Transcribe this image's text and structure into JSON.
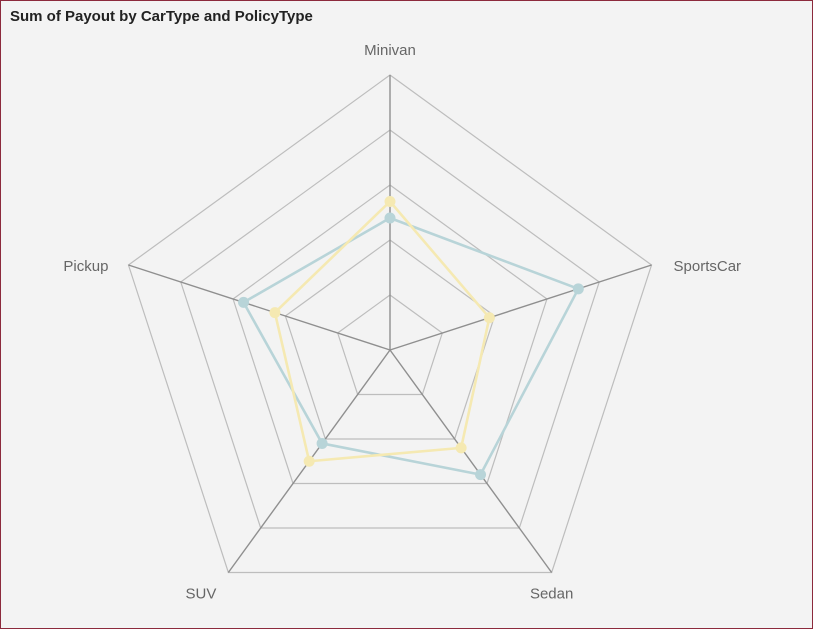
{
  "title": "Sum of Payout by CarType and PolicyType",
  "chart_data": {
    "type": "radar",
    "title": "Sum of Payout by CarType and PolicyType",
    "categories": [
      "Minivan",
      "SportsCar",
      "Sedan",
      "SUV",
      "Pickup"
    ],
    "rings": 5,
    "series": [
      {
        "values": [
          2.4,
          3.6,
          2.8,
          2.1,
          2.8
        ],
        "color": "#b8d4d8"
      },
      {
        "values": [
          2.7,
          1.9,
          2.2,
          2.5,
          2.2
        ],
        "color": "#f5e9b2"
      }
    ],
    "grid": true
  }
}
